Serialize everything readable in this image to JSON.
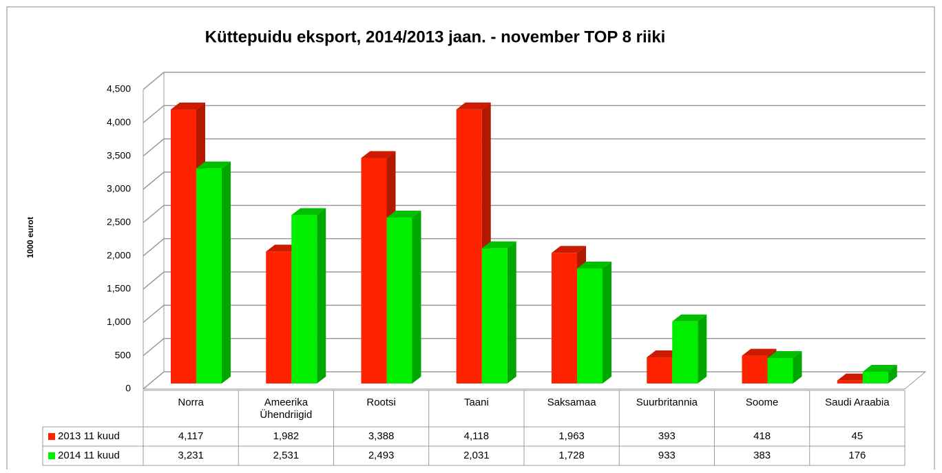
{
  "chart_data": {
    "type": "bar3d",
    "title": "Küttepuidu eksport, 2014/2013 jaan. - november TOP 8 riiki",
    "y_label": "1000 eurot",
    "categories": [
      "Norra",
      "Ameerika Ühendriigid",
      "Rootsi",
      "Taani",
      "Saksamaa",
      "Suurbritannia",
      "Soome",
      "Saudi Araabia"
    ],
    "series": [
      {
        "name": "2013 11 kuud",
        "color": "#ff2200",
        "values": [
          4117,
          1982,
          3388,
          4118,
          1963,
          393,
          418,
          45
        ],
        "value_labels": [
          "4,117",
          "1,982",
          "3,388",
          "4,118",
          "1,963",
          "393",
          "418",
          "45"
        ]
      },
      {
        "name": "2014 11 kuud",
        "color": "#00ee00",
        "values": [
          3231,
          2531,
          2493,
          2031,
          1728,
          933,
          383,
          176
        ],
        "value_labels": [
          "3,231",
          "2,531",
          "2,493",
          "2,031",
          "1,728",
          "933",
          "383",
          "176"
        ]
      }
    ],
    "ylim": [
      0,
      4500
    ],
    "yticks": [
      0,
      500,
      {
        "value": 1000,
        "label": "1,000"
      },
      {
        "value": 1500,
        "label": "1,500"
      },
      {
        "value": 2000,
        "label": "2,000"
      },
      {
        "value": 2500,
        "label": "2,500"
      },
      {
        "value": 3000,
        "label": "3,000"
      },
      {
        "value": 3500,
        "label": "3,500"
      },
      {
        "value": 4000,
        "label": "4,000"
      },
      {
        "value": 4500,
        "label": "4,500"
      }
    ],
    "grid": true,
    "legend": "table"
  }
}
